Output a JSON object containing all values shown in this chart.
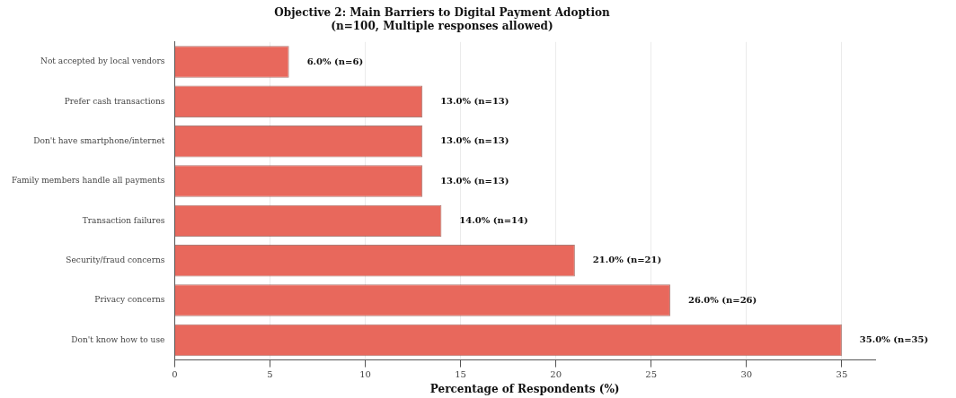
{
  "chart_data": {
    "type": "bar",
    "orientation": "horizontal",
    "title": "Objective 2: Main Barriers to Digital Payment Adoption",
    "subtitle": "(n=100, Multiple responses allowed)",
    "xlabel": "Percentage of Respondents (%)",
    "categories": [
      "Not accepted by local vendors",
      "Prefer cash transactions",
      "Don't have smartphone/internet",
      "Family members handle all payments",
      "Transaction failures",
      "Security/fraud concerns",
      "Privacy concerns",
      "Don't know how to use"
    ],
    "values": [
      6,
      13,
      13,
      13,
      14,
      21,
      26,
      35
    ],
    "value_labels": [
      "6.0% (n=6)",
      "13.0% (n=13)",
      "13.0% (n=13)",
      "13.0% (n=13)",
      "14.0% (n=14)",
      "21.0% (n=21)",
      "26.0% (n=26)",
      "35.0% (n=35)"
    ],
    "color": "#e8685c",
    "xlim": [
      0,
      36.75
    ],
    "xticks": [
      0,
      5,
      10,
      15,
      20,
      25,
      30,
      35
    ],
    "grid": "x",
    "legend": false
  }
}
